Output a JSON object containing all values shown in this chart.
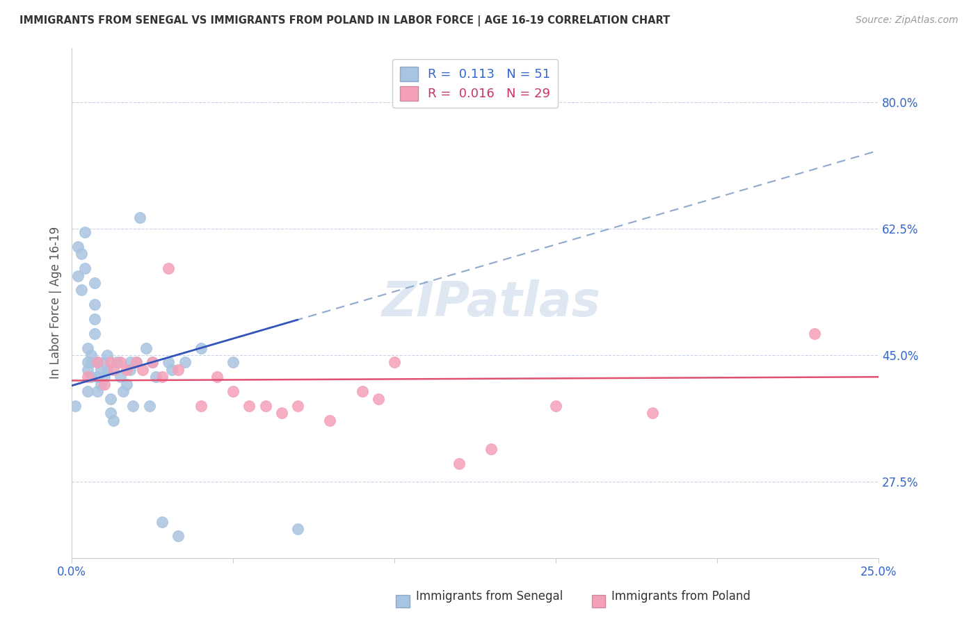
{
  "title": "IMMIGRANTS FROM SENEGAL VS IMMIGRANTS FROM POLAND IN LABOR FORCE | AGE 16-19 CORRELATION CHART",
  "source": "Source: ZipAtlas.com",
  "ylabel": "In Labor Force | Age 16-19",
  "xlim": [
    0.0,
    0.25
  ],
  "ylim": [
    0.17,
    0.875
  ],
  "xticks": [
    0.0,
    0.05,
    0.1,
    0.15,
    0.2,
    0.25
  ],
  "xticklabels": [
    "0.0%",
    "",
    "",
    "",
    "",
    "25.0%"
  ],
  "ytick_labels_right": [
    "80.0%",
    "62.5%",
    "45.0%",
    "27.5%"
  ],
  "ytick_values_right": [
    0.8,
    0.625,
    0.45,
    0.275
  ],
  "senegal_color": "#a8c4e0",
  "poland_color": "#f4a0b8",
  "senegal_line_color": "#3355bb",
  "poland_line_color": "#e05070",
  "dashed_line_color": "#90a8cc",
  "legend_R_senegal": "0.113",
  "legend_N_senegal": "51",
  "legend_R_poland": "0.016",
  "legend_N_poland": "29",
  "legend_label_senegal": "Immigrants from Senegal",
  "legend_label_poland": "Immigrants from Poland",
  "watermark": "ZIPatlas",
  "senegal_x": [
    0.001,
    0.002,
    0.002,
    0.003,
    0.003,
    0.004,
    0.004,
    0.005,
    0.005,
    0.005,
    0.005,
    0.006,
    0.006,
    0.006,
    0.007,
    0.007,
    0.007,
    0.007,
    0.008,
    0.008,
    0.008,
    0.009,
    0.009,
    0.01,
    0.01,
    0.011,
    0.011,
    0.012,
    0.012,
    0.013,
    0.014,
    0.015,
    0.016,
    0.017,
    0.018,
    0.018,
    0.019,
    0.02,
    0.021,
    0.023,
    0.024,
    0.025,
    0.026,
    0.028,
    0.03,
    0.031,
    0.033,
    0.035,
    0.04,
    0.05,
    0.07
  ],
  "senegal_y": [
    0.38,
    0.6,
    0.56,
    0.59,
    0.54,
    0.62,
    0.57,
    0.44,
    0.46,
    0.43,
    0.4,
    0.45,
    0.44,
    0.42,
    0.55,
    0.52,
    0.5,
    0.48,
    0.44,
    0.42,
    0.4,
    0.43,
    0.41,
    0.44,
    0.42,
    0.45,
    0.43,
    0.39,
    0.37,
    0.36,
    0.44,
    0.42,
    0.4,
    0.41,
    0.44,
    0.43,
    0.38,
    0.44,
    0.64,
    0.46,
    0.38,
    0.44,
    0.42,
    0.22,
    0.44,
    0.43,
    0.2,
    0.44,
    0.46,
    0.44,
    0.21
  ],
  "poland_x": [
    0.005,
    0.008,
    0.01,
    0.012,
    0.013,
    0.015,
    0.017,
    0.02,
    0.022,
    0.025,
    0.028,
    0.03,
    0.033,
    0.04,
    0.045,
    0.05,
    0.055,
    0.06,
    0.065,
    0.07,
    0.08,
    0.09,
    0.095,
    0.1,
    0.12,
    0.13,
    0.15,
    0.18,
    0.23
  ],
  "poland_y": [
    0.42,
    0.44,
    0.41,
    0.44,
    0.43,
    0.44,
    0.43,
    0.44,
    0.43,
    0.44,
    0.42,
    0.57,
    0.43,
    0.38,
    0.42,
    0.4,
    0.38,
    0.38,
    0.37,
    0.38,
    0.36,
    0.4,
    0.39,
    0.44,
    0.3,
    0.32,
    0.38,
    0.37,
    0.48
  ],
  "senegal_line_xrange": [
    0.0,
    0.07
  ],
  "senegal_line_slope": 1.3,
  "senegal_line_intercept": 0.408,
  "poland_line_xrange": [
    0.0,
    0.25
  ],
  "poland_line_slope": 0.02,
  "poland_line_intercept": 0.415
}
